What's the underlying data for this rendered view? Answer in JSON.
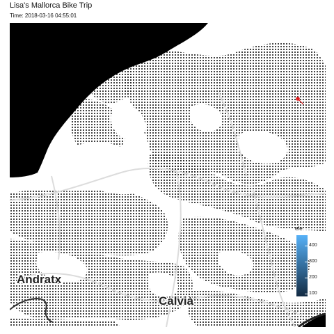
{
  "title": "Lisa's Mallorca Bike Trip",
  "subtitle": "Time: 2018-03-16 04:55:01",
  "map": {
    "labels": {
      "andratx": "Andratx",
      "calvia": "Calvià"
    },
    "colors": {
      "sea": "#000000",
      "land": "#ffffff",
      "relief_dots": "#111111",
      "roads": "#dcdcdc",
      "coastline": "#333333",
      "route_point": "#e41a1c"
    }
  },
  "legend": {
    "title": "ele",
    "ticks": [
      "400",
      "300",
      "200",
      "100"
    ],
    "colors": {
      "low": "#132b43",
      "high": "#56b1f7"
    }
  }
}
